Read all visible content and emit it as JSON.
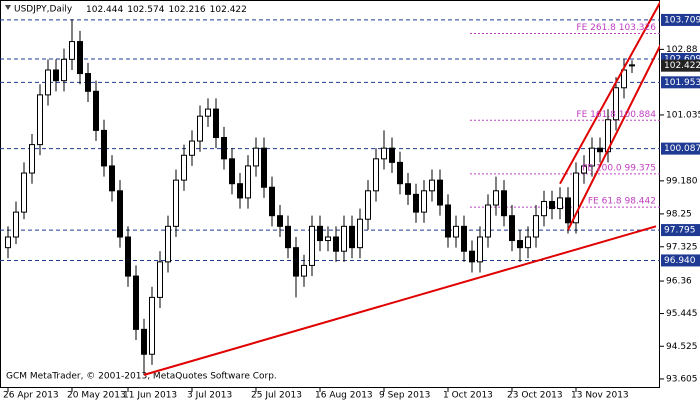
{
  "chart_data": {
    "type": "candlestick",
    "symbol": "USDJPY,Daily",
    "header_ohlc": [
      102.444,
      102.574,
      102.216,
      102.422
    ],
    "footer": "GCM MetaTrader, © 2001-2013, MetaQuotes Software Corp.",
    "categories": [
      "26 Apr 2013",
      null,
      null,
      null,
      null,
      null,
      null,
      null,
      "20 May 2013",
      null,
      null,
      null,
      null,
      null,
      null,
      "11 Jun 2013",
      null,
      null,
      null,
      null,
      null,
      null,
      null,
      "3 Jul 2013",
      null,
      null,
      null,
      null,
      null,
      null,
      null,
      "25 Jul 2013",
      null,
      null,
      null,
      null,
      null,
      null,
      null,
      "16 Aug 2013",
      null,
      null,
      null,
      null,
      null,
      null,
      null,
      "9 Sep 2013",
      null,
      null,
      null,
      null,
      null,
      null,
      null,
      "1 Oct 2013",
      null,
      null,
      null,
      null,
      null,
      null,
      null,
      "23 Oct 2013",
      null,
      null,
      null,
      null,
      null,
      null,
      null,
      "13 Nov 2013",
      null,
      null,
      null,
      null,
      null,
      null,
      null
    ],
    "candles": [
      [
        97.3,
        97.9,
        97.0,
        97.6
      ],
      [
        97.6,
        98.6,
        97.4,
        98.3
      ],
      [
        98.3,
        99.7,
        98.1,
        99.4
      ],
      [
        99.4,
        100.5,
        99.1,
        100.2
      ],
      [
        100.2,
        101.9,
        99.9,
        101.6
      ],
      [
        101.6,
        102.6,
        101.3,
        102.3
      ],
      [
        102.3,
        102.6,
        101.7,
        102.0
      ],
      [
        102.0,
        102.9,
        101.7,
        102.6
      ],
      [
        102.6,
        103.73,
        102.3,
        103.1
      ],
      [
        103.1,
        103.4,
        101.9,
        102.2
      ],
      [
        102.2,
        102.5,
        101.4,
        101.7
      ],
      [
        101.7,
        102.0,
        100.3,
        100.6
      ],
      [
        100.6,
        100.9,
        99.3,
        99.6
      ],
      [
        99.6,
        99.9,
        98.6,
        98.9
      ],
      [
        98.9,
        99.2,
        97.3,
        97.6
      ],
      [
        97.6,
        97.9,
        96.2,
        96.5
      ],
      [
        96.5,
        96.8,
        94.7,
        95.0
      ],
      [
        95.0,
        95.3,
        93.72,
        94.3
      ],
      [
        94.3,
        96.2,
        94.0,
        95.9
      ],
      [
        95.9,
        97.2,
        95.6,
        96.9
      ],
      [
        96.9,
        98.2,
        96.6,
        97.9
      ],
      [
        97.9,
        99.5,
        97.6,
        99.2
      ],
      [
        99.2,
        100.2,
        98.9,
        99.9
      ],
      [
        99.9,
        100.6,
        99.6,
        100.3
      ],
      [
        100.3,
        101.3,
        100.0,
        101.0
      ],
      [
        101.0,
        101.5,
        100.7,
        101.2
      ],
      [
        101.2,
        101.5,
        100.1,
        100.4
      ],
      [
        100.4,
        100.7,
        99.5,
        99.8
      ],
      [
        99.8,
        100.1,
        98.8,
        99.1
      ],
      [
        99.1,
        99.4,
        98.4,
        98.7
      ],
      [
        98.7,
        99.9,
        98.4,
        99.6
      ],
      [
        99.6,
        100.4,
        99.3,
        100.1
      ],
      [
        100.1,
        100.4,
        98.7,
        99.0
      ],
      [
        99.0,
        99.3,
        97.9,
        98.2
      ],
      [
        98.2,
        98.5,
        97.6,
        97.9
      ],
      [
        97.9,
        98.2,
        97.0,
        97.3
      ],
      [
        97.3,
        97.6,
        95.9,
        96.5
      ],
      [
        96.5,
        97.1,
        96.2,
        96.8
      ],
      [
        96.8,
        98.2,
        96.5,
        97.9
      ],
      [
        97.9,
        98.2,
        97.2,
        97.5
      ],
      [
        97.5,
        97.9,
        97.2,
        97.6
      ],
      [
        97.6,
        97.9,
        96.9,
        97.2
      ],
      [
        97.2,
        98.2,
        96.9,
        97.9
      ],
      [
        97.9,
        98.2,
        97.0,
        97.3
      ],
      [
        97.3,
        98.4,
        97.0,
        98.1
      ],
      [
        98.1,
        99.2,
        97.8,
        98.9
      ],
      [
        98.9,
        100.1,
        98.6,
        99.8
      ],
      [
        99.8,
        100.6,
        99.5,
        100.1
      ],
      [
        100.1,
        100.4,
        99.4,
        99.7
      ],
      [
        99.7,
        100.0,
        98.8,
        99.1
      ],
      [
        99.1,
        99.4,
        98.5,
        98.8
      ],
      [
        98.8,
        99.1,
        98.0,
        98.3
      ],
      [
        98.3,
        99.2,
        98.0,
        98.9
      ],
      [
        98.9,
        99.5,
        98.6,
        99.2
      ],
      [
        99.2,
        99.5,
        98.2,
        98.5
      ],
      [
        98.5,
        98.8,
        97.3,
        97.6
      ],
      [
        97.6,
        98.2,
        97.3,
        97.9
      ],
      [
        97.9,
        98.2,
        96.9,
        97.2
      ],
      [
        97.2,
        97.5,
        96.6,
        96.9
      ],
      [
        96.9,
        97.9,
        96.6,
        97.6
      ],
      [
        97.6,
        98.8,
        97.3,
        98.5
      ],
      [
        98.5,
        99.3,
        98.2,
        98.9
      ],
      [
        98.9,
        99.2,
        97.9,
        98.2
      ],
      [
        98.2,
        98.5,
        97.2,
        97.5
      ],
      [
        97.5,
        97.8,
        96.9,
        97.3
      ],
      [
        97.3,
        97.9,
        97.0,
        97.6
      ],
      [
        97.6,
        98.5,
        97.3,
        98.2
      ],
      [
        98.2,
        98.9,
        97.9,
        98.6
      ],
      [
        98.6,
        98.9,
        98.1,
        98.4
      ],
      [
        98.4,
        99.0,
        98.1,
        98.7
      ],
      [
        98.7,
        99.0,
        97.7,
        98.0
      ],
      [
        98.0,
        99.7,
        97.7,
        99.4
      ],
      [
        99.4,
        99.9,
        99.1,
        99.6
      ],
      [
        99.6,
        100.4,
        99.3,
        100.1
      ],
      [
        100.1,
        100.4,
        99.7,
        100.0
      ],
      [
        100.0,
        101.2,
        99.7,
        100.9
      ],
      [
        100.9,
        102.1,
        100.6,
        101.8
      ],
      [
        101.8,
        102.6,
        101.5,
        102.3
      ],
      [
        102.444,
        102.574,
        102.216,
        102.422
      ]
    ],
    "ylim": [
      93.35,
      104.27
    ],
    "yticks": [
      102.88,
      101.035,
      {
        "value": 99.18,
        "label": "99.180"
      },
      98.25,
      97.325,
      96.36,
      95.445,
      94.525,
      93.605
    ],
    "levels": [
      103.709,
      102.609,
      101.953,
      100.087,
      97.795,
      {
        "value": 96.94,
        "label": "96.940"
      }
    ],
    "level_color": "#1f3a93",
    "fibs": [
      {
        "label": "FE 261.8 103.326",
        "value": 103.326
      },
      {
        "label": "FE 161.8 100.884",
        "value": 100.884
      },
      {
        "label": "FE 100.0 99.375",
        "value": 99.375
      },
      {
        "label": "FE 61.8 98.442",
        "value": 98.442
      }
    ],
    "fib_color": "#c040c0",
    "trendlines": [
      {
        "color": "#e00000",
        "points": [
          [
            17,
            93.72
          ],
          [
            81,
            97.9
          ]
        ]
      },
      {
        "color": "#e00000",
        "points": [
          [
            69,
            99.1
          ],
          [
            82,
            104.4
          ]
        ]
      },
      {
        "color": "#e00000",
        "points": [
          [
            70,
            97.8
          ],
          [
            82,
            103.2
          ]
        ]
      }
    ]
  }
}
